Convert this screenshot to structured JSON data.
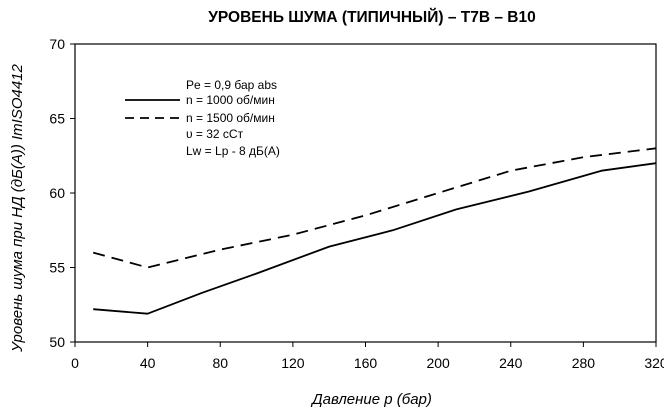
{
  "chart_data": {
    "type": "line",
    "title": "УРОВЕНЬ ШУМА (ТИПИЧНЫЙ) – T7B – B10",
    "xlabel": "Давление p (бар)",
    "ylabel": "Уровень шума при НД (дБ(A)) ImISO4412",
    "xlim": [
      0,
      320
    ],
    "ylim": [
      50,
      70
    ],
    "x_ticks": [
      "0",
      "40",
      "80",
      "120",
      "160",
      "200",
      "240",
      "280",
      "320"
    ],
    "y_ticks": [
      "50",
      "55",
      "60",
      "65",
      "70"
    ],
    "grid": "none",
    "legend_position": "top-left",
    "legend_lines": [
      "Pe = 0,9 бар abs",
      "n   = 1000 об/мин",
      "n   = 1500 об/мин",
      "υ   = 32 сСт",
      "Lw = Lp - 8 дБ(A)"
    ],
    "series": [
      {
        "name": "n   = 1000 об/мин",
        "style": "solid",
        "color": "#000000",
        "x": [
          10,
          40,
          70,
          100,
          140,
          175,
          210,
          250,
          290,
          320
        ],
        "y": [
          52.2,
          51.9,
          53.3,
          54.6,
          56.4,
          57.5,
          58.9,
          60.1,
          61.5,
          62.0
        ]
      },
      {
        "name": "n   = 1500 об/мин",
        "style": "dashed",
        "color": "#000000",
        "x": [
          10,
          40,
          80,
          120,
          160,
          200,
          240,
          280,
          320
        ],
        "y": [
          56.0,
          55.0,
          56.2,
          57.2,
          58.5,
          60.0,
          61.5,
          62.4,
          63.0
        ]
      }
    ]
  }
}
